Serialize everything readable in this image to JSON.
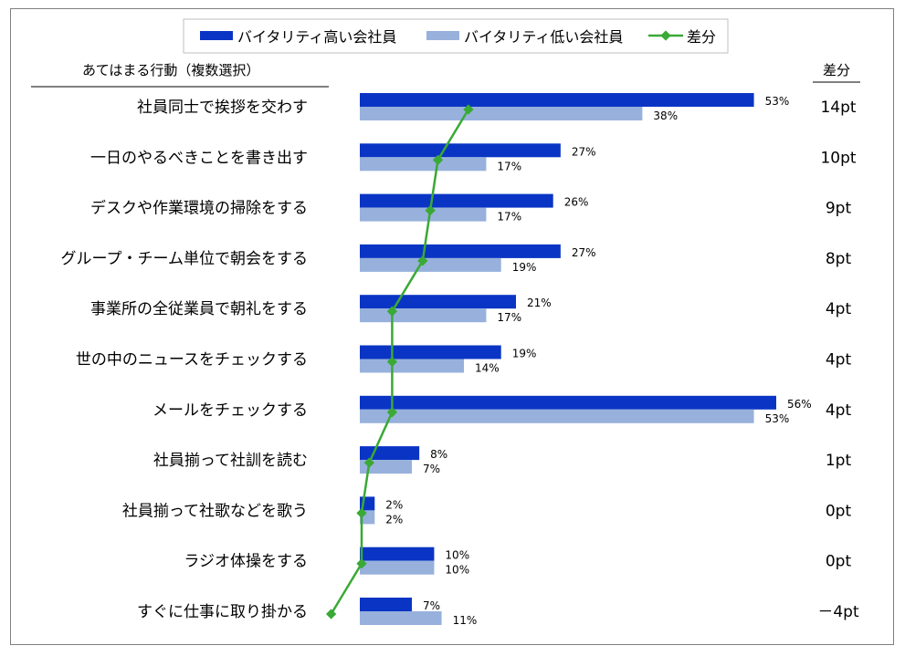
{
  "chart_data": {
    "type": "bar",
    "orientation": "horizontal",
    "header_left": "あてはまる行動（複数選択）",
    "header_right": "差分",
    "legend": [
      "バイタリティ高い会社員",
      "バイタリティ低い会社員",
      "差分"
    ],
    "categories": [
      "社員同士で挨拶を交わす",
      "一日のやるべきことを書き出す",
      "デスクや作業環境の掃除をする",
      "グループ・チーム単位で朝会をする",
      "事業所の全従業員で朝礼をする",
      "世の中のニュースをチェックする",
      "メールをチェックする",
      "社員揃って社訓を読む",
      "社員揃って社歌などを歌う",
      "ラジオ体操をする",
      "すぐに仕事に取り掛かる"
    ],
    "series": [
      {
        "name": "バイタリティ高い会社員",
        "color": "#0a35c4",
        "values": [
          53,
          27,
          26,
          27,
          21,
          19,
          56,
          8,
          2,
          10,
          7
        ]
      },
      {
        "name": "バイタリティ低い会社員",
        "color": "#97b1dc",
        "values": [
          38,
          17,
          17,
          19,
          17,
          14,
          53,
          7,
          2,
          10,
          11
        ]
      }
    ],
    "value_labels_high": [
      "53%",
      "27%",
      "26%",
      "27%",
      "21%",
      "19%",
      "56%",
      "8%",
      "2%",
      "10%",
      "7%"
    ],
    "value_labels_low": [
      "38%",
      "17%",
      "17%",
      "19%",
      "17%",
      "14%",
      "53%",
      "7%",
      "2%",
      "10%",
      "11%"
    ],
    "diff": {
      "name": "差分",
      "color": "#3aa935",
      "values": [
        14,
        10,
        9,
        8,
        4,
        4,
        4,
        1,
        0,
        0,
        -4
      ]
    },
    "diff_labels": [
      "14pt",
      "10pt",
      "9pt",
      "8pt",
      "4pt",
      "4pt",
      "4pt",
      "1pt",
      "0pt",
      "0pt",
      "－4pt"
    ],
    "xlim": [
      0,
      56
    ]
  }
}
